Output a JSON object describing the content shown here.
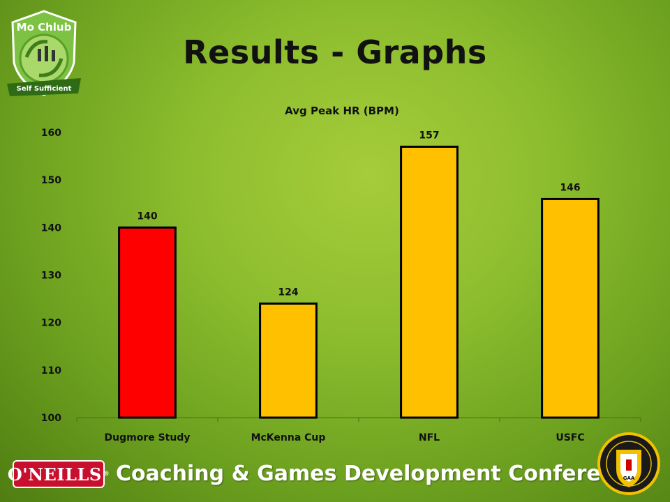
{
  "header": {
    "logo_top_line": "Mo Chlub",
    "logo_banner": "Self Sufficient",
    "title": "Results - Graphs"
  },
  "footer": {
    "brand": "O'NEILLS",
    "conference": "Coaching & Games Development Conference",
    "crest_text": "GAA"
  },
  "chart_data": {
    "type": "bar",
    "title": "Avg Peak HR (BPM)",
    "categories": [
      "Dugmore Study",
      "McKenna Cup",
      "NFL",
      "USFC"
    ],
    "values": [
      140,
      124,
      157,
      146
    ],
    "data_labels": [
      "140",
      "124",
      "157",
      "146"
    ],
    "colors": [
      "#ff0000",
      "#ffc000",
      "#ffc000",
      "#ffc000"
    ],
    "ylim": [
      100,
      160
    ],
    "yticks": [
      100,
      110,
      120,
      130,
      140,
      150,
      160
    ],
    "xlabel": "",
    "ylabel": "",
    "grid": false,
    "legend": "none"
  }
}
